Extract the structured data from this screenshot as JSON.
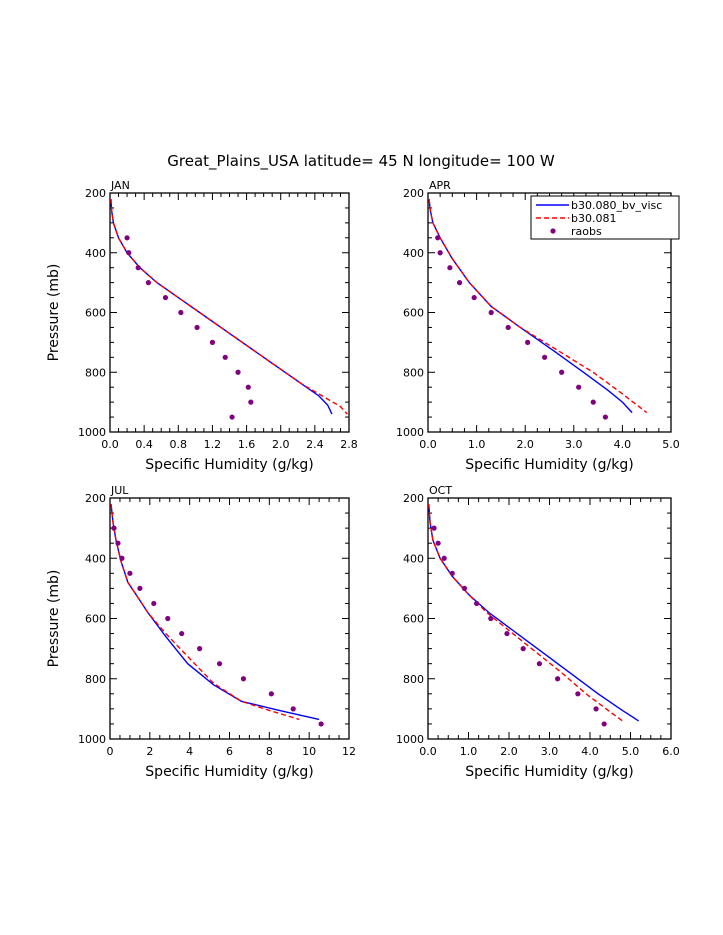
{
  "title": "Great_Plains_USA  latitude= 45 N longitude= 100 W",
  "colors": {
    "series1": "#0000ff",
    "series2": "#ff0000",
    "series3": "#800080"
  },
  "legend": {
    "placement": "top-right of APR panel",
    "entries": [
      "b30.080_bv_visc",
      "b30.081",
      "raobs"
    ]
  },
  "chart_data": [
    {
      "type": "line",
      "panel": "JAN",
      "xlabel": "Specific Humidity (g/kg)",
      "ylabel": "Pressure (mb)",
      "xlim": [
        0,
        2.8
      ],
      "ylim": [
        1000,
        200
      ],
      "xticks": [
        0.0,
        0.4,
        0.8,
        1.2,
        1.6,
        2.0,
        2.4,
        2.8
      ],
      "xtick_labels": [
        "0.0",
        "0.4",
        "0.8",
        "1.2",
        "1.6",
        "2.0",
        "2.4",
        "2.8"
      ],
      "yticks": [
        200,
        400,
        600,
        800,
        1000
      ],
      "ytick_labels": [
        "200",
        "400",
        "600",
        "800",
        "1000"
      ],
      "series": [
        {
          "name": "b30.080_bv_visc",
          "style": "solid",
          "x": [
            0.01,
            0.02,
            0.04,
            0.1,
            0.2,
            0.35,
            0.55,
            0.8,
            1.1,
            1.45,
            1.8,
            2.15,
            2.45,
            2.55,
            2.6
          ],
          "y": [
            220,
            260,
            300,
            350,
            400,
            450,
            500,
            550,
            610,
            680,
            750,
            820,
            880,
            910,
            940
          ]
        },
        {
          "name": "b30.081",
          "style": "dashed",
          "x": [
            0.01,
            0.02,
            0.04,
            0.1,
            0.2,
            0.35,
            0.55,
            0.85,
            1.2,
            1.55,
            1.9,
            2.25,
            2.55,
            2.7,
            2.78
          ],
          "y": [
            220,
            260,
            300,
            350,
            400,
            450,
            500,
            560,
            630,
            700,
            770,
            840,
            890,
            915,
            940
          ]
        },
        {
          "name": "raobs",
          "style": "markers",
          "x": [
            0.2,
            0.22,
            0.33,
            0.45,
            0.65,
            0.83,
            1.02,
            1.2,
            1.35,
            1.5,
            1.62,
            1.65,
            1.43
          ],
          "y": [
            350,
            400,
            450,
            500,
            550,
            600,
            650,
            700,
            750,
            800,
            850,
            900,
            950
          ]
        }
      ]
    },
    {
      "type": "line",
      "panel": "APR",
      "xlabel": "Specific Humidity (g/kg)",
      "ylabel": "",
      "xlim": [
        0,
        5.0
      ],
      "ylim": [
        1000,
        200
      ],
      "xticks": [
        0.0,
        1.0,
        2.0,
        3.0,
        4.0,
        5.0
      ],
      "xtick_labels": [
        "0.0",
        "1.0",
        "2.0",
        "3.0",
        "4.0",
        "5.0"
      ],
      "yticks": [
        200,
        400,
        600,
        800,
        1000
      ],
      "ytick_labels": [
        "200",
        "400",
        "600",
        "800",
        "1000"
      ],
      "series": [
        {
          "name": "b30.080_bv_visc",
          "style": "solid",
          "x": [
            0.02,
            0.05,
            0.1,
            0.25,
            0.5,
            0.85,
            1.3,
            1.9,
            2.6,
            3.2,
            3.7,
            4.0,
            4.2
          ],
          "y": [
            220,
            260,
            300,
            350,
            420,
            500,
            580,
            650,
            730,
            800,
            860,
            900,
            935
          ]
        },
        {
          "name": "b30.081",
          "style": "dashed",
          "x": [
            0.02,
            0.05,
            0.1,
            0.25,
            0.5,
            0.85,
            1.3,
            1.9,
            2.7,
            3.4,
            3.9,
            4.3,
            4.5
          ],
          "y": [
            220,
            260,
            300,
            350,
            420,
            500,
            580,
            650,
            730,
            800,
            860,
            910,
            935
          ]
        },
        {
          "name": "raobs",
          "style": "markers",
          "x": [
            0.2,
            0.25,
            0.45,
            0.65,
            0.95,
            1.3,
            1.65,
            2.05,
            2.4,
            2.75,
            3.1,
            3.4,
            3.65
          ],
          "y": [
            350,
            400,
            450,
            500,
            550,
            600,
            650,
            700,
            750,
            800,
            850,
            900,
            950
          ]
        }
      ]
    },
    {
      "type": "line",
      "panel": "JUL",
      "xlabel": "Specific Humidity (g/kg)",
      "ylabel": "Pressure (mb)",
      "xlim": [
        0,
        12
      ],
      "ylim": [
        1000,
        200
      ],
      "xticks": [
        0,
        2,
        4,
        6,
        8,
        10,
        12
      ],
      "xtick_labels": [
        "0",
        "2",
        "4",
        "6",
        "8",
        "10",
        "12"
      ],
      "yticks": [
        200,
        400,
        600,
        800,
        1000
      ],
      "ytick_labels": [
        "200",
        "400",
        "600",
        "800",
        "1000"
      ],
      "series": [
        {
          "name": "b30.080_bv_visc",
          "style": "solid",
          "x": [
            0.05,
            0.15,
            0.3,
            0.55,
            0.9,
            1.3,
            1.9,
            2.8,
            3.9,
            5.2,
            6.6,
            8.5,
            10.5
          ],
          "y": [
            220,
            280,
            340,
            410,
            480,
            520,
            580,
            660,
            750,
            820,
            875,
            905,
            935
          ]
        },
        {
          "name": "b30.081",
          "style": "dashed",
          "x": [
            0.05,
            0.15,
            0.3,
            0.55,
            0.9,
            1.3,
            1.9,
            2.8,
            4.1,
            5.2,
            6.6,
            8.0,
            9.5
          ],
          "y": [
            220,
            280,
            340,
            410,
            480,
            520,
            580,
            650,
            740,
            815,
            875,
            905,
            935
          ]
        },
        {
          "name": "raobs",
          "style": "markers",
          "x": [
            0.2,
            0.4,
            0.6,
            1.0,
            1.5,
            2.2,
            2.9,
            3.6,
            4.5,
            5.5,
            6.7,
            8.1,
            9.2,
            10.6
          ],
          "y": [
            300,
            350,
            400,
            450,
            500,
            550,
            600,
            650,
            700,
            750,
            800,
            850,
            900,
            950
          ]
        }
      ]
    },
    {
      "type": "line",
      "panel": "OCT",
      "xlabel": "Specific Humidity (g/kg)",
      "ylabel": "",
      "xlim": [
        0,
        6.0
      ],
      "ylim": [
        1000,
        200
      ],
      "xticks": [
        0.0,
        1.0,
        2.0,
        3.0,
        4.0,
        5.0,
        6.0
      ],
      "xtick_labels": [
        "0.0",
        "1.0",
        "2.0",
        "3.0",
        "4.0",
        "5.0",
        "6.0"
      ],
      "yticks": [
        200,
        400,
        600,
        800,
        1000
      ],
      "ytick_labels": [
        "200",
        "400",
        "600",
        "800",
        "1000"
      ],
      "series": [
        {
          "name": "b30.080_bv_visc",
          "style": "solid",
          "x": [
            0.02,
            0.05,
            0.12,
            0.3,
            0.6,
            1.0,
            1.5,
            2.1,
            2.8,
            3.5,
            4.2,
            4.8,
            5.2
          ],
          "y": [
            220,
            280,
            340,
            400,
            460,
            520,
            580,
            640,
            710,
            780,
            850,
            905,
            940
          ]
        },
        {
          "name": "b30.081",
          "style": "dashed",
          "x": [
            0.02,
            0.05,
            0.12,
            0.3,
            0.6,
            1.0,
            1.45,
            2.0,
            2.65,
            3.3,
            3.9,
            4.4,
            4.8
          ],
          "y": [
            220,
            280,
            340,
            400,
            460,
            520,
            580,
            640,
            710,
            780,
            850,
            900,
            940
          ]
        },
        {
          "name": "raobs",
          "style": "markers",
          "x": [
            0.15,
            0.25,
            0.4,
            0.6,
            0.9,
            1.2,
            1.55,
            1.95,
            2.35,
            2.75,
            3.2,
            3.7,
            4.15,
            4.35
          ],
          "y": [
            300,
            350,
            400,
            450,
            500,
            550,
            600,
            650,
            700,
            750,
            800,
            850,
            900,
            950
          ]
        }
      ]
    }
  ]
}
